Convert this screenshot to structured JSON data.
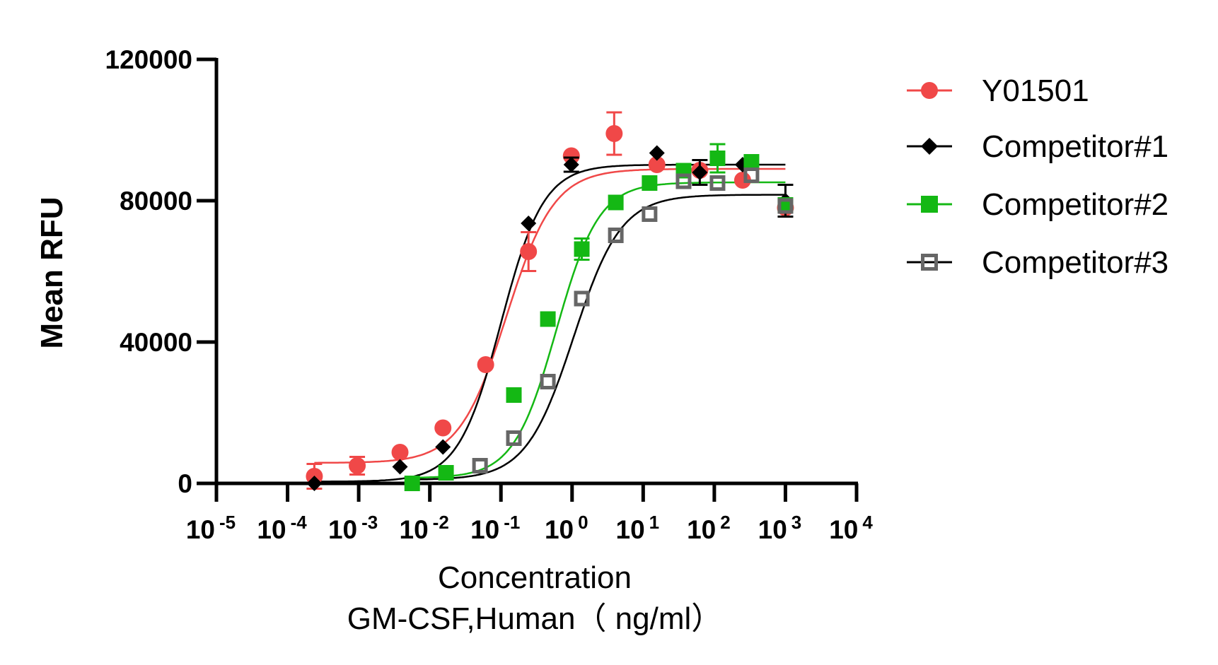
{
  "chart_data": {
    "type": "scatter",
    "title": "",
    "xlabel": "Concentration",
    "xlabel_line2": "GM-CSF,Human（ ng/ml）",
    "ylabel": "Mean RFU",
    "xscale": "log",
    "xlim": [
      1e-05,
      10000
    ],
    "ylim": [
      0,
      120000
    ],
    "x_ticks": [
      -5,
      -4,
      -3,
      -2,
      -1,
      0,
      1,
      2,
      3,
      4
    ],
    "x_tick_base": "10",
    "x_tick_labels": [
      "-5",
      "-4",
      "-3",
      "-2",
      "-1",
      "0",
      "1",
      "2",
      "3",
      "4"
    ],
    "y_ticks": [
      0,
      40000,
      80000,
      120000
    ],
    "y_tick_labels": [
      "0",
      "40000",
      "80000",
      "120000"
    ],
    "grid": false,
    "legend_position": "right",
    "series": [
      {
        "name": "Y01501",
        "color": "#f04848",
        "marker": "circle",
        "filled": true,
        "x": [
          0.000238,
          0.000954,
          0.00381,
          0.0153,
          0.061,
          0.244,
          0.977,
          3.91,
          15.6,
          62.5,
          250,
          1000
        ],
        "y": [
          2000,
          5000,
          8800,
          15700,
          33600,
          65600,
          92700,
          99000,
          90200,
          88600,
          85800,
          78000
        ],
        "yerr": [
          3500,
          2500,
          500,
          500,
          500,
          5500,
          500,
          6000,
          500,
          500,
          500,
          500
        ],
        "fit": {
          "bottom": 5800,
          "top": 89000,
          "ec50": 0.12,
          "hill": 1.3,
          "xmin": 0.000238,
          "xmax": 1000
        }
      },
      {
        "name": "Competitor#1",
        "color": "#000000",
        "marker": "diamond",
        "filled": true,
        "x": [
          0.000238,
          0.00381,
          0.0153,
          0.244,
          0.977,
          15.6,
          62.5,
          250,
          1000
        ],
        "y": [
          0,
          4700,
          10300,
          73600,
          90200,
          93500,
          88000,
          90200,
          80000
        ],
        "yerr": [
          0,
          500,
          500,
          500,
          2000,
          500,
          3500,
          500,
          4500
        ],
        "fit": {
          "bottom": 500,
          "top": 90200,
          "ec50": 0.1,
          "hill": 1.45,
          "xmin": 0.000238,
          "xmax": 1000
        }
      },
      {
        "name": "Competitor#2",
        "color": "#14b814",
        "marker": "square",
        "filled": true,
        "x": [
          0.00565,
          0.0169,
          0.152,
          0.457,
          1.37,
          4.12,
          12.3,
          37,
          111,
          333,
          1000
        ],
        "y": [
          0,
          3000,
          25000,
          46500,
          66300,
          79500,
          85000,
          88500,
          92000,
          91000,
          78800
        ],
        "yerr": [
          0,
          500,
          500,
          500,
          3000,
          500,
          500,
          500,
          4000,
          500,
          500
        ],
        "fit": {
          "bottom": 1500,
          "top": 85200,
          "ec50": 0.6,
          "hill": 1.45,
          "xmin": 0.00565,
          "xmax": 1000
        }
      },
      {
        "name": "Competitor#3",
        "color": "#666666",
        "line_color": "#000000",
        "marker": "square",
        "filled": false,
        "x": [
          0.0508,
          0.152,
          0.457,
          1.37,
          4.12,
          12.3,
          37,
          111,
          333,
          1000
        ],
        "y": [
          5000,
          12800,
          28800,
          52300,
          70200,
          76200,
          85500,
          85000,
          87200,
          78500
        ],
        "yerr": [
          500,
          500,
          500,
          500,
          500,
          500,
          500,
          500,
          500,
          500
        ],
        "fit": {
          "bottom": 1000,
          "top": 81700,
          "ec50": 1.05,
          "hill": 1.3,
          "xmin": 0.00565,
          "xmax": 1000
        }
      }
    ]
  }
}
